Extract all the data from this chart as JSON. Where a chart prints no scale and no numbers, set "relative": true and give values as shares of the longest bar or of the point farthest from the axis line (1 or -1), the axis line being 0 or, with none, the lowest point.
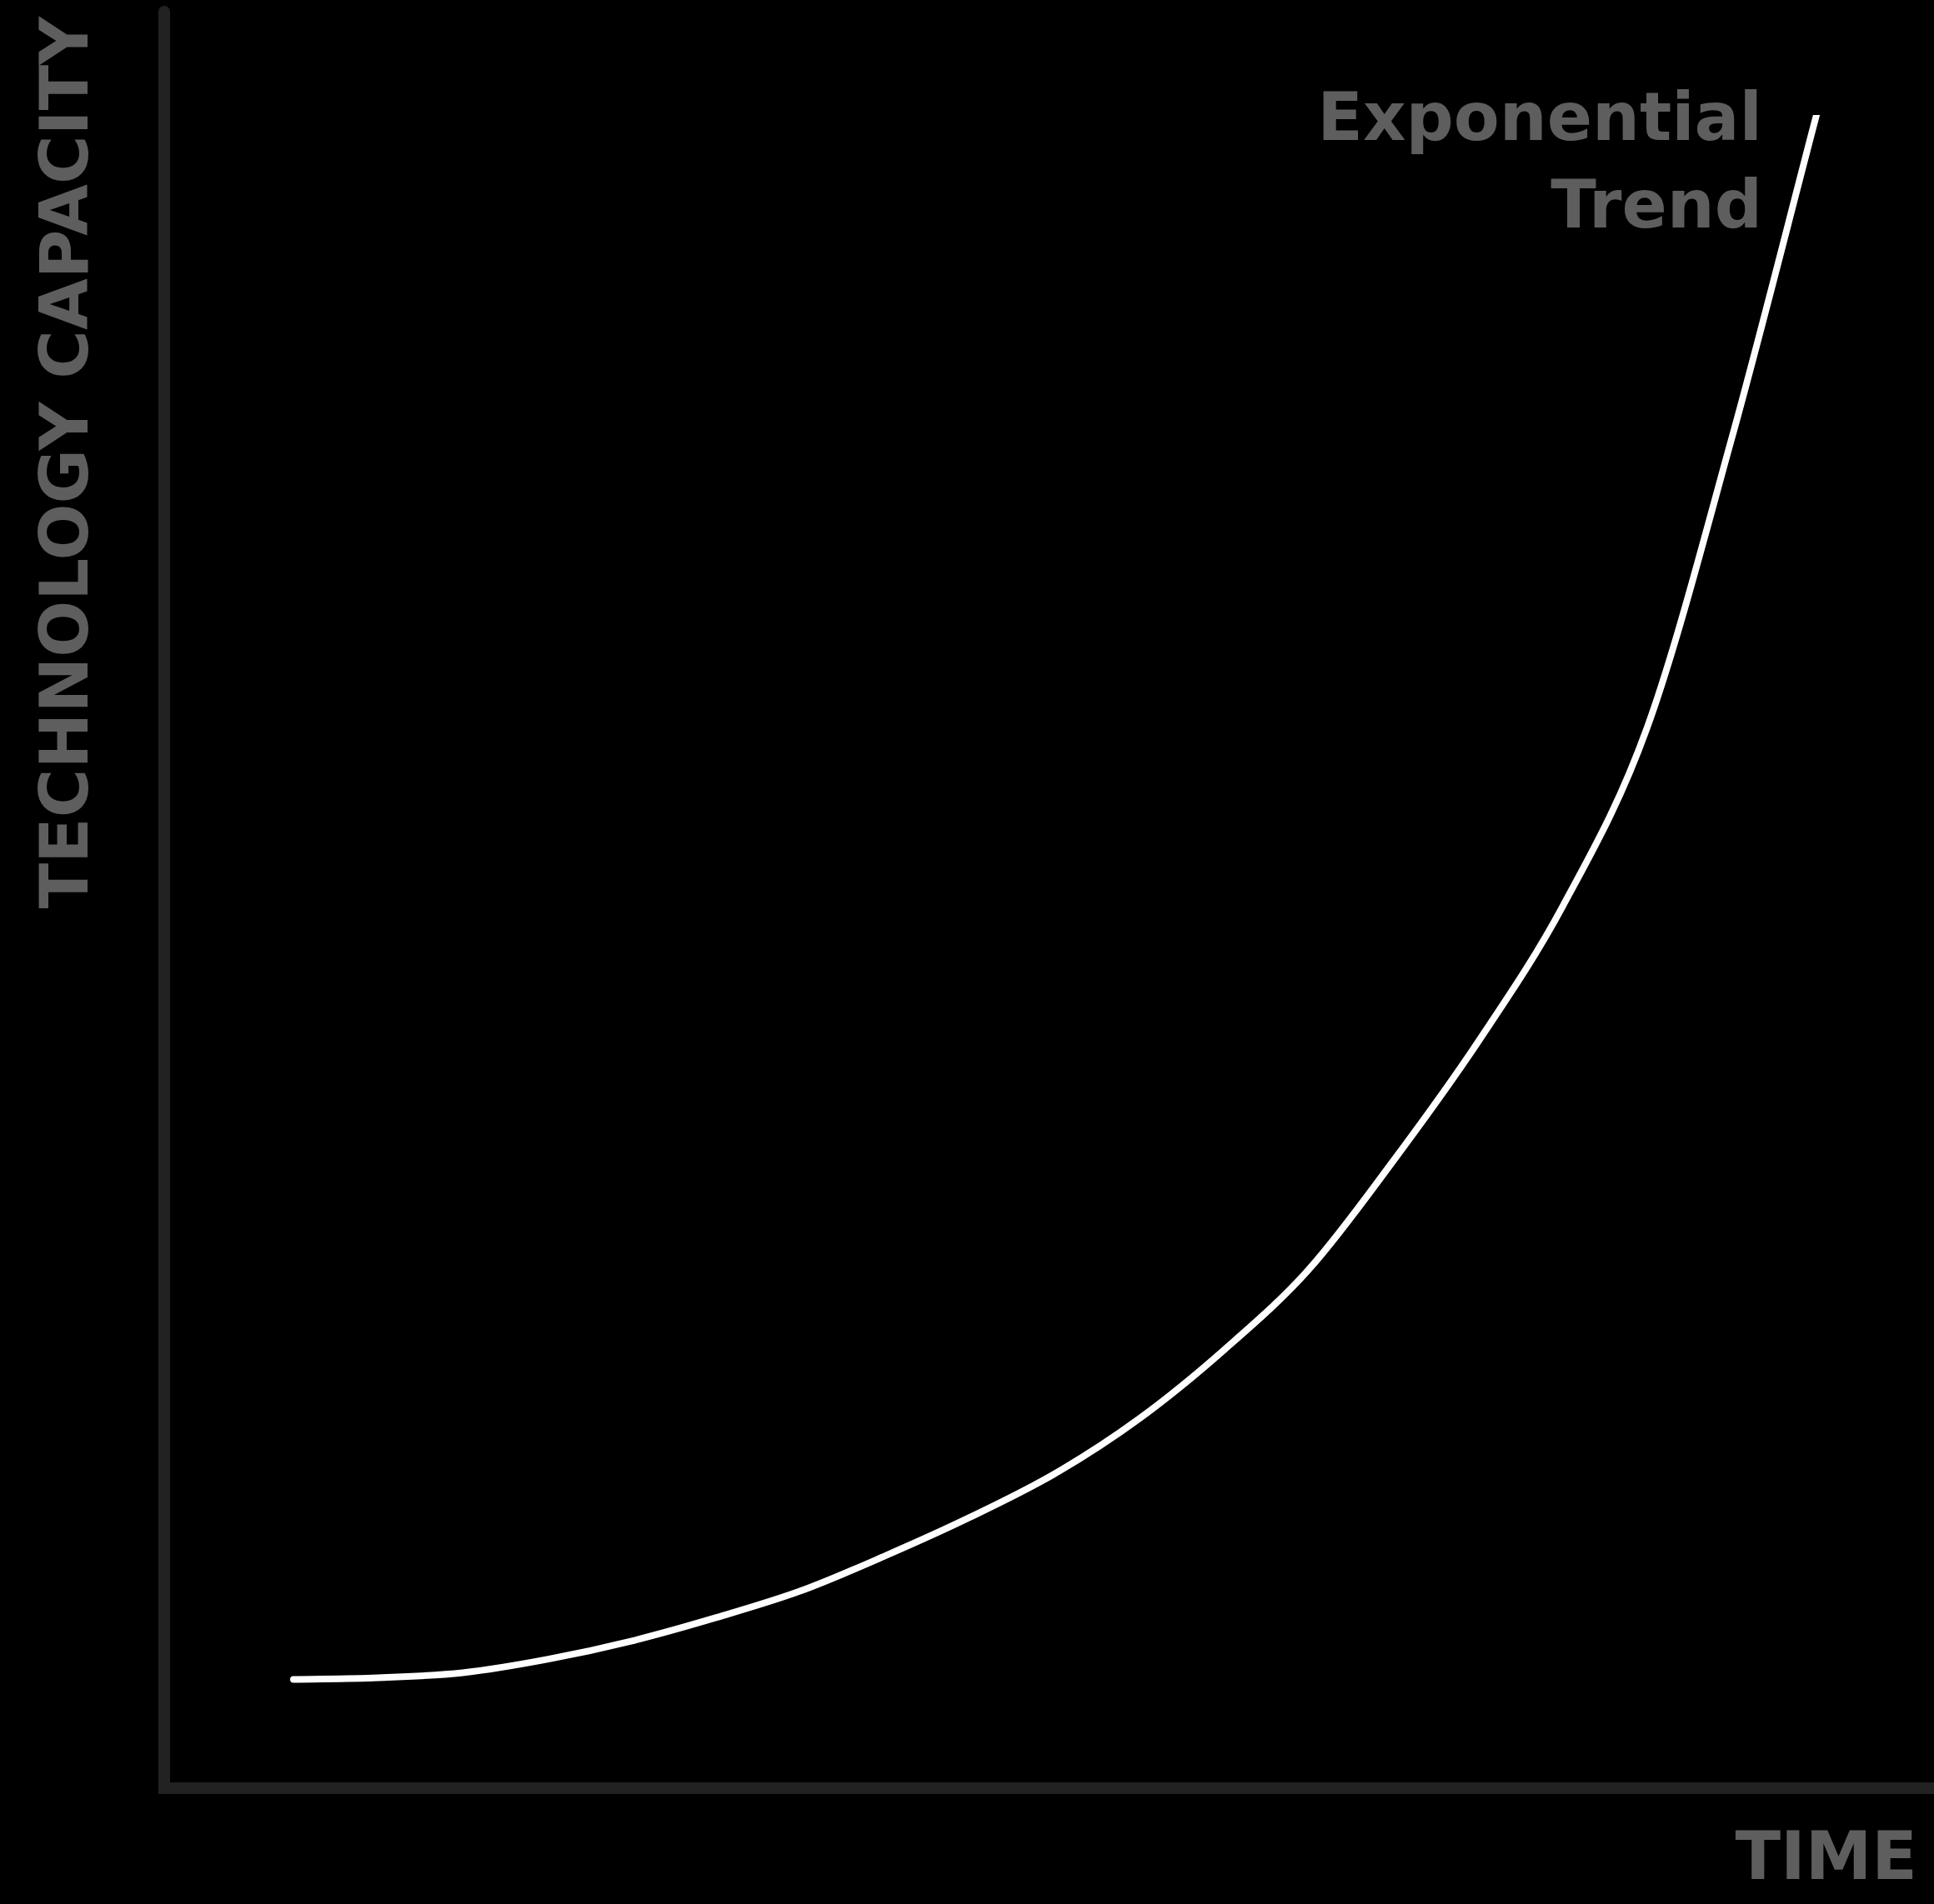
{
  "chart_data": {
    "type": "line",
    "xlabel": "TIME",
    "ylabel": "TECHNOLOGY CAPACITY",
    "relative": true,
    "tick_labels": false,
    "marker": "none",
    "line_style": "solid",
    "categories": [
      null,
      null,
      null,
      null,
      null,
      null,
      null,
      null,
      null,
      null,
      null,
      null,
      null,
      null,
      null,
      null,
      null,
      null,
      null
    ],
    "series": [
      {
        "name": "Exponential Trend",
        "color": "#ffffff",
        "values": [
          0.065,
          0.066,
          0.069,
          0.077,
          0.088,
          0.102,
          0.118,
          0.139,
          0.162,
          0.188,
          0.221,
          0.262,
          0.31,
          0.375,
          0.446,
          0.527,
          0.634,
          0.807,
          1
        ]
      }
    ]
  }
}
